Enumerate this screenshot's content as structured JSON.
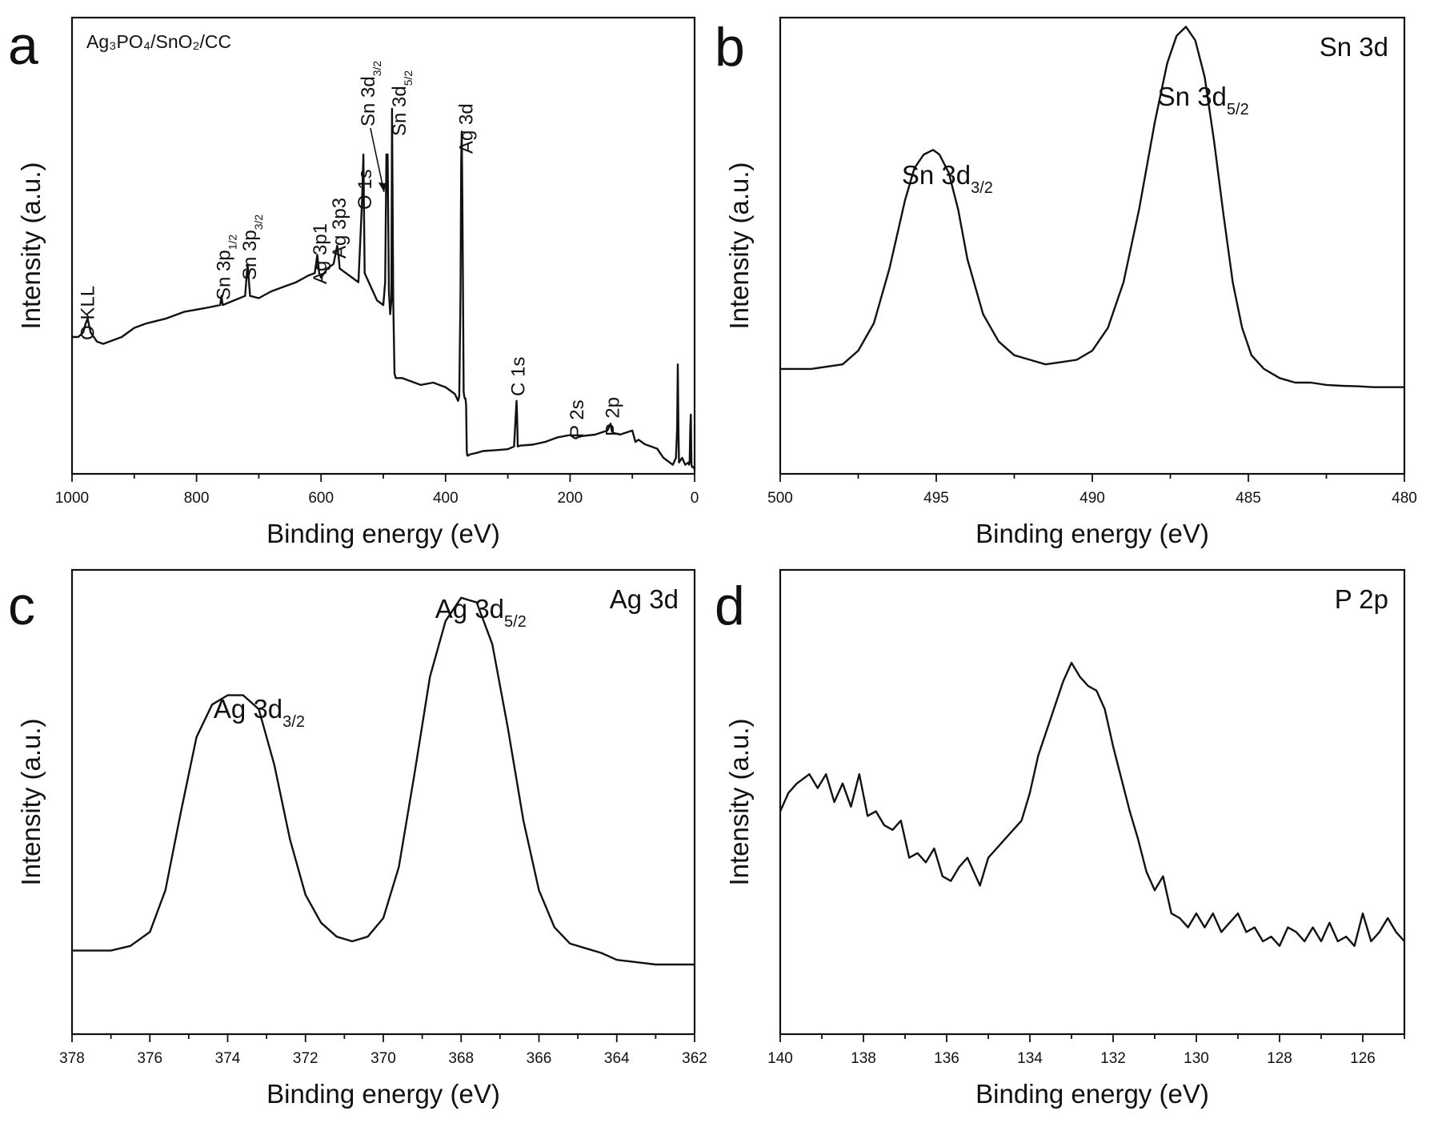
{
  "chart_data": [
    {
      "panel": "a",
      "type": "line",
      "sample_label": "Ag₃PO₄/SnO₂/CC",
      "xlabel": "Binding energy (eV)",
      "ylabel": "Intensity (a.u.)",
      "xlim": [
        1000,
        0
      ],
      "x_ticks": [
        1000,
        800,
        600,
        400,
        200,
        0
      ],
      "ylim": [
        0,
        100
      ],
      "series": [
        {
          "x": [
            1000,
            990,
            982,
            978,
            975,
            970,
            960,
            950,
            920,
            900,
            880,
            850,
            820,
            800,
            780,
            762,
            760,
            758,
            740,
            722,
            718,
            714,
            700,
            680,
            660,
            640,
            620,
            610,
            606,
            603,
            600,
            590,
            580,
            574,
            572,
            570,
            560,
            550,
            540,
            534,
            532,
            530,
            520,
            510,
            500,
            497,
            495,
            493,
            491,
            489,
            487,
            486,
            484,
            482,
            480,
            470,
            460,
            450,
            440,
            420,
            400,
            395,
            390,
            385,
            380,
            378,
            376,
            375,
            374,
            373,
            372,
            371,
            370,
            369,
            368,
            367,
            366,
            365,
            364,
            360,
            350,
            340,
            320,
            300,
            290,
            286,
            285,
            284,
            280,
            260,
            240,
            220,
            200,
            192,
            190,
            188,
            180,
            160,
            140,
            135,
            133,
            131,
            120,
            100,
            95,
            90,
            80,
            70,
            60,
            55,
            50,
            45,
            40,
            35,
            30,
            28,
            27,
            26,
            25,
            20,
            15,
            10,
            9,
            8,
            7,
            6,
            5,
            4,
            2,
            0
          ],
          "y": [
            30,
            30,
            31,
            33,
            34,
            31,
            29,
            28.5,
            30,
            32,
            33,
            34,
            35.5,
            36,
            36.5,
            37,
            39,
            37,
            38,
            39,
            46,
            39,
            38.5,
            40,
            41,
            42,
            43.5,
            44,
            48,
            44,
            43,
            45,
            46,
            50,
            48,
            45,
            44,
            43,
            42,
            60,
            70,
            44,
            41,
            38,
            37,
            42,
            70,
            70,
            40,
            35,
            38,
            80,
            38,
            22,
            21,
            21,
            20.5,
            20,
            19.5,
            20,
            19,
            18.5,
            18,
            17.5,
            16,
            17,
            40,
            68,
            75,
            60,
            40,
            18,
            17,
            16.5,
            16.5,
            15,
            5,
            4,
            4,
            4.3,
            4.6,
            5,
            5.2,
            5.4,
            6,
            16,
            12,
            6,
            6.2,
            6.4,
            7,
            8,
            8.5,
            7.8,
            7.8,
            8,
            8.3,
            8.6,
            9.5,
            11,
            9.4,
            9,
            8.6,
            9.5,
            7,
            7.5,
            6.5,
            6,
            5.5,
            4.5,
            3.5,
            3,
            2.5,
            2,
            3.5,
            10,
            24,
            10,
            2.5,
            3.5,
            2,
            2.5,
            2,
            2.5,
            10,
            13,
            2,
            1.5,
            1.5,
            1
          ]
        }
      ],
      "annotations": [
        {
          "text": "O KLL",
          "x": 976
        },
        {
          "text": "Sn 3p",
          "sub": "1/2",
          "x": 758
        },
        {
          "text": "Sn 3p",
          "sub": "3/2",
          "x": 716
        },
        {
          "text": "Ag 3p1",
          "x": 603
        },
        {
          "text": "Ag 3p3",
          "x": 572
        },
        {
          "text": "O 1s",
          "x": 531
        },
        {
          "text": "Sn 3d",
          "sub": "3/2",
          "x": 495
        },
        {
          "text": "Sn 3d",
          "sub": "5/2",
          "x": 486
        },
        {
          "text": "Ag 3d",
          "x": 368
        },
        {
          "text": "C 1s",
          "x": 285
        },
        {
          "text": "P 2s",
          "x": 190
        },
        {
          "text": "P 2p",
          "x": 133
        }
      ]
    },
    {
      "panel": "b",
      "type": "line",
      "title": "Sn 3d",
      "xlabel": "Binding energy (eV)",
      "ylabel": "Intensity (a.u.)",
      "xlim": [
        500,
        480
      ],
      "x_ticks": [
        500,
        495,
        490,
        485,
        480
      ],
      "ylim": [
        0,
        100
      ],
      "series": [
        {
          "x": [
            500,
            499,
            498,
            497.5,
            497,
            496.5,
            496,
            495.7,
            495.4,
            495.1,
            494.9,
            494.6,
            494.3,
            494,
            493.5,
            493,
            492.5,
            492,
            491.5,
            491,
            490.5,
            490,
            489.5,
            489,
            488.5,
            488,
            487.6,
            487.3,
            487,
            486.7,
            486.4,
            486.1,
            485.8,
            485.5,
            485.2,
            484.9,
            484.5,
            484,
            483.5,
            483,
            482.5,
            482,
            481.5,
            481,
            480.5,
            480
          ],
          "y": [
            23,
            23,
            24,
            27,
            33,
            45,
            60,
            67,
            70,
            71,
            70,
            66,
            58,
            47,
            35,
            29,
            26,
            25,
            24,
            24.5,
            25,
            27,
            32,
            42,
            58,
            77,
            90,
            96,
            98,
            95,
            87,
            73,
            57,
            42,
            32,
            26,
            23,
            21,
            20,
            20,
            19.5,
            19.3,
            19.2,
            19,
            19,
            19
          ]
        }
      ],
      "annotations": [
        {
          "text": "Sn 3d",
          "sub": "3/2",
          "x": 494.9
        },
        {
          "text": "Sn 3d",
          "sub": "5/2",
          "x": 486.7
        }
      ]
    },
    {
      "panel": "c",
      "type": "line",
      "title": "Ag 3d",
      "xlabel": "Binding energy (eV)",
      "ylabel": "Intensity (a.u.)",
      "xlim": [
        378,
        362
      ],
      "x_ticks": [
        378,
        376,
        374,
        372,
        370,
        368,
        366,
        364,
        362
      ],
      "ylim": [
        0,
        100
      ],
      "series": [
        {
          "x": [
            378,
            377,
            376.5,
            376,
            375.6,
            375.2,
            374.8,
            374.4,
            374,
            373.6,
            373.2,
            372.8,
            372.4,
            372,
            371.6,
            371.2,
            370.8,
            370.4,
            370,
            369.6,
            369.2,
            368.8,
            368.4,
            368,
            367.6,
            367.2,
            366.8,
            366.4,
            366,
            365.6,
            365.2,
            364.8,
            364.4,
            364,
            363.5,
            363,
            362.5,
            362
          ],
          "y": [
            18,
            18,
            19,
            22,
            31,
            48,
            64,
            71,
            73,
            73,
            70,
            58,
            42,
            30,
            24,
            21,
            20,
            21,
            25,
            36,
            56,
            77,
            89,
            94,
            93,
            84,
            66,
            46,
            31,
            23,
            19.5,
            18.5,
            17.5,
            16,
            15.5,
            15,
            15,
            15
          ]
        }
      ]
    },
    {
      "panel": "d",
      "type": "line",
      "title": "P 2p",
      "xlabel": "Binding energy (eV)",
      "ylabel": "Intensity (a.u.)",
      "xlim": [
        140,
        125
      ],
      "x_ticks": [
        140,
        138,
        136,
        134,
        132,
        130,
        128,
        126
      ],
      "ylim": [
        0,
        100
      ],
      "series": [
        {
          "x": [
            140,
            139.8,
            139.6,
            139.3,
            139.1,
            138.9,
            138.7,
            138.5,
            138.3,
            138.1,
            137.9,
            137.7,
            137.5,
            137.3,
            137.1,
            136.9,
            136.7,
            136.5,
            136.3,
            136.1,
            135.9,
            135.7,
            135.5,
            135.2,
            135,
            134.8,
            134.5,
            134.2,
            134,
            133.8,
            133.5,
            133.2,
            133,
            132.8,
            132.6,
            132.4,
            132.2,
            132,
            131.8,
            131.6,
            131.4,
            131.2,
            131,
            130.8,
            130.6,
            130.4,
            130.2,
            130,
            129.8,
            129.6,
            129.4,
            129.2,
            129,
            128.8,
            128.6,
            128.4,
            128.2,
            128,
            127.8,
            127.6,
            127.4,
            127.2,
            127,
            126.8,
            126.6,
            126.4,
            126.2,
            126,
            125.8,
            125.6,
            125.4,
            125.2,
            125
          ],
          "y": [
            48,
            52,
            54,
            56,
            53,
            56,
            50,
            54,
            49,
            56,
            47,
            48,
            45,
            44,
            46,
            38,
            39,
            37,
            40,
            34,
            33,
            36,
            38,
            32,
            38,
            40,
            43,
            46,
            52,
            60,
            68,
            76,
            80,
            77,
            75,
            74,
            70,
            62,
            55,
            48,
            42,
            35,
            31,
            34,
            26,
            25,
            23,
            26,
            23,
            26,
            22,
            24,
            26,
            22,
            23,
            20,
            21,
            19,
            23,
            22,
            20,
            23,
            20,
            24,
            20,
            21,
            19,
            26,
            20,
            22,
            25,
            22,
            20
          ]
        }
      ]
    }
  ],
  "panels": {
    "a": {
      "letter": "a"
    },
    "b": {
      "letter": "b"
    },
    "c": {
      "letter": "c"
    },
    "d": {
      "letter": "d"
    }
  }
}
